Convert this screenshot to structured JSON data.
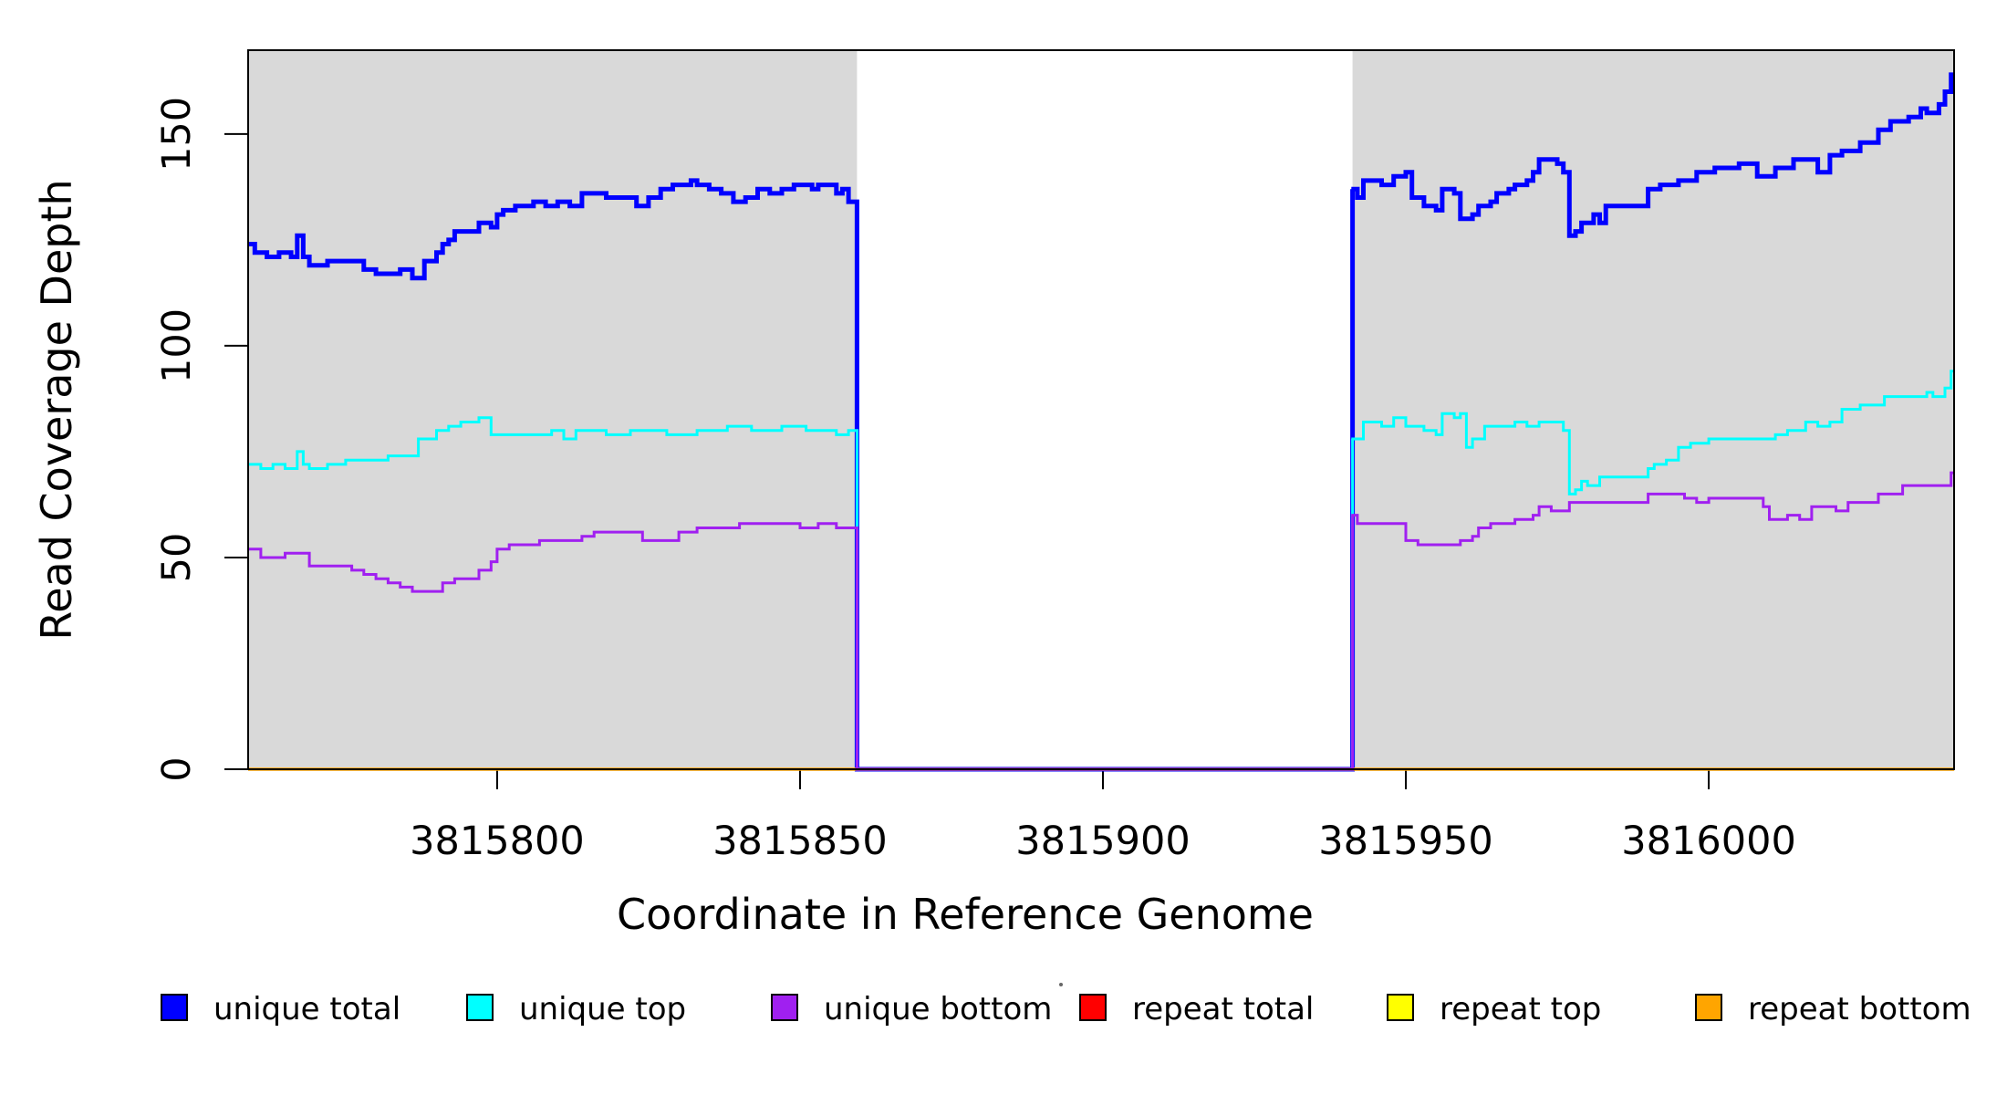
{
  "chart_data": {
    "type": "line",
    "subtype": "step-after-coverage-plot",
    "title": "",
    "xlabel": "Coordinate in Reference Genome",
    "ylabel": "Read Coverage Depth",
    "x_ticks": [
      3815800,
      3815850,
      3815900,
      3815950,
      3816000
    ],
    "y_ticks": [
      0,
      50,
      100,
      150
    ],
    "xlim": [
      3815758.9,
      3816040.5
    ],
    "ylim": [
      0,
      169.8
    ],
    "grid": false,
    "background_shading": {
      "color": "#D9D9D9",
      "regions": [
        {
          "from": 3815758.9,
          "to": 3815859.4,
          "meaning": "unique region (shaded)"
        },
        {
          "from": 3815941.2,
          "to": 3816040.5,
          "meaning": "unique region (shaded)"
        }
      ]
    },
    "zero_coverage_gap": {
      "from": 3815859.4,
      "to": 3815941.2
    },
    "series": [
      {
        "name": "unique total",
        "color": "#0000FF",
        "width": 5,
        "left_segment": [
          [
            3815759,
            124
          ],
          [
            3815760,
            122
          ],
          [
            3815762,
            121
          ],
          [
            3815764,
            122
          ],
          [
            3815766,
            121
          ],
          [
            3815767,
            126
          ],
          [
            3815768,
            121
          ],
          [
            3815769,
            119
          ],
          [
            3815772,
            120
          ],
          [
            3815778,
            118
          ],
          [
            3815780,
            117
          ],
          [
            3815784,
            118
          ],
          [
            3815786,
            116
          ],
          [
            3815788,
            120
          ],
          [
            3815790,
            122
          ],
          [
            3815791,
            124
          ],
          [
            3815792,
            125
          ],
          [
            3815793,
            127
          ],
          [
            3815797,
            129
          ],
          [
            3815799,
            128
          ],
          [
            3815800,
            131
          ],
          [
            3815801,
            132
          ],
          [
            3815803,
            133
          ],
          [
            3815806,
            134
          ],
          [
            3815808,
            133
          ],
          [
            3815810,
            134
          ],
          [
            3815812,
            133
          ],
          [
            3815814,
            136
          ],
          [
            3815818,
            135
          ],
          [
            3815821,
            135
          ],
          [
            3815823,
            133
          ],
          [
            3815825,
            135
          ],
          [
            3815827,
            137
          ],
          [
            3815829,
            138
          ],
          [
            3815832,
            139
          ],
          [
            3815833,
            138
          ],
          [
            3815835,
            137
          ],
          [
            3815837,
            136
          ],
          [
            3815839,
            134
          ],
          [
            3815841,
            135
          ],
          [
            3815843,
            137
          ],
          [
            3815845,
            136
          ],
          [
            3815847,
            137
          ],
          [
            3815849,
            138
          ],
          [
            3815852,
            137
          ],
          [
            3815853,
            138
          ],
          [
            3815856,
            136
          ],
          [
            3815857,
            137
          ],
          [
            3815858,
            134
          ]
        ],
        "right_segment": [
          [
            3815941,
            137
          ],
          [
            3815942,
            135
          ],
          [
            3815943,
            139
          ],
          [
            3815946,
            138
          ],
          [
            3815948,
            140
          ],
          [
            3815950,
            141
          ],
          [
            3815951,
            135
          ],
          [
            3815953,
            133
          ],
          [
            3815955,
            132
          ],
          [
            3815956,
            137
          ],
          [
            3815958,
            136
          ],
          [
            3815959,
            130
          ],
          [
            3815961,
            131
          ],
          [
            3815962,
            133
          ],
          [
            3815964,
            134
          ],
          [
            3815965,
            136
          ],
          [
            3815967,
            137
          ],
          [
            3815968,
            138
          ],
          [
            3815970,
            139
          ],
          [
            3815971,
            141
          ],
          [
            3815972,
            144
          ],
          [
            3815975,
            143
          ],
          [
            3815976,
            141
          ],
          [
            3815977,
            126
          ],
          [
            3815978,
            127
          ],
          [
            3815979,
            129
          ],
          [
            3815981,
            131
          ],
          [
            3815982,
            129
          ],
          [
            3815983,
            133
          ],
          [
            3815990,
            137
          ],
          [
            3815992,
            138
          ],
          [
            3815995,
            139
          ],
          [
            3815998,
            141
          ],
          [
            3816001,
            142
          ],
          [
            3816005,
            143
          ],
          [
            3816008,
            140
          ],
          [
            3816011,
            142
          ],
          [
            3816014,
            144
          ],
          [
            3816018,
            141
          ],
          [
            3816020,
            145
          ],
          [
            3816022,
            146
          ],
          [
            3816025,
            148
          ],
          [
            3816028,
            151
          ],
          [
            3816030,
            153
          ],
          [
            3816033,
            154
          ],
          [
            3816035,
            156
          ],
          [
            3816036,
            155
          ],
          [
            3816038,
            157
          ],
          [
            3816039,
            160
          ],
          [
            3816040,
            164
          ]
        ]
      },
      {
        "name": "unique top",
        "color": "#00FFFF",
        "width": 3,
        "left_segment": [
          [
            3815759,
            72
          ],
          [
            3815761,
            71
          ],
          [
            3815763,
            72
          ],
          [
            3815765,
            71
          ],
          [
            3815767,
            75
          ],
          [
            3815768,
            72
          ],
          [
            3815769,
            71
          ],
          [
            3815772,
            72
          ],
          [
            3815775,
            73
          ],
          [
            3815782,
            74
          ],
          [
            3815787,
            78
          ],
          [
            3815790,
            80
          ],
          [
            3815792,
            81
          ],
          [
            3815794,
            82
          ],
          [
            3815797,
            83
          ],
          [
            3815799,
            79
          ],
          [
            3815807,
            79
          ],
          [
            3815809,
            80
          ],
          [
            3815811,
            78
          ],
          [
            3815813,
            80
          ],
          [
            3815818,
            79
          ],
          [
            3815822,
            80
          ],
          [
            3815828,
            79
          ],
          [
            3815833,
            80
          ],
          [
            3815838,
            81
          ],
          [
            3815842,
            80
          ],
          [
            3815847,
            81
          ],
          [
            3815851,
            80
          ],
          [
            3815856,
            79
          ],
          [
            3815858,
            80
          ]
        ],
        "right_segment": [
          [
            3815941,
            78
          ],
          [
            3815943,
            82
          ],
          [
            3815946,
            81
          ],
          [
            3815948,
            83
          ],
          [
            3815950,
            81
          ],
          [
            3815953,
            80
          ],
          [
            3815955,
            79
          ],
          [
            3815956,
            84
          ],
          [
            3815958,
            83
          ],
          [
            3815959,
            84
          ],
          [
            3815960,
            76
          ],
          [
            3815961,
            78
          ],
          [
            3815963,
            81
          ],
          [
            3815968,
            82
          ],
          [
            3815970,
            81
          ],
          [
            3815972,
            82
          ],
          [
            3815975,
            82
          ],
          [
            3815976,
            80
          ],
          [
            3815977,
            65
          ],
          [
            3815978,
            66
          ],
          [
            3815979,
            68
          ],
          [
            3815980,
            67
          ],
          [
            3815982,
            69
          ],
          [
            3815990,
            71
          ],
          [
            3815991,
            72
          ],
          [
            3815993,
            73
          ],
          [
            3815995,
            76
          ],
          [
            3815997,
            77
          ],
          [
            3816000,
            78
          ],
          [
            3816011,
            79
          ],
          [
            3816013,
            80
          ],
          [
            3816016,
            82
          ],
          [
            3816018,
            81
          ],
          [
            3816020,
            82
          ],
          [
            3816022,
            85
          ],
          [
            3816025,
            86
          ],
          [
            3816029,
            88
          ],
          [
            3816036,
            89
          ],
          [
            3816037,
            88
          ],
          [
            3816039,
            90
          ],
          [
            3816040,
            94
          ]
        ]
      },
      {
        "name": "unique bottom",
        "color": "#A020F0",
        "width": 3,
        "left_segment": [
          [
            3815759,
            52
          ],
          [
            3815761,
            50
          ],
          [
            3815765,
            51
          ],
          [
            3815767,
            51
          ],
          [
            3815769,
            48
          ],
          [
            3815772,
            48
          ],
          [
            3815776,
            47
          ],
          [
            3815778,
            46
          ],
          [
            3815780,
            45
          ],
          [
            3815782,
            44
          ],
          [
            3815784,
            43
          ],
          [
            3815786,
            42
          ],
          [
            3815791,
            44
          ],
          [
            3815793,
            45
          ],
          [
            3815797,
            47
          ],
          [
            3815799,
            49
          ],
          [
            3815800,
            52
          ],
          [
            3815802,
            53
          ],
          [
            3815807,
            54
          ],
          [
            3815814,
            55
          ],
          [
            3815816,
            56
          ],
          [
            3815821,
            56
          ],
          [
            3815824,
            54
          ],
          [
            3815828,
            54
          ],
          [
            3815830,
            56
          ],
          [
            3815833,
            57
          ],
          [
            3815837,
            57
          ],
          [
            3815840,
            58
          ],
          [
            3815845,
            58
          ],
          [
            3815850,
            57
          ],
          [
            3815853,
            58
          ],
          [
            3815856,
            57
          ]
        ],
        "right_segment": [
          [
            3815941,
            60
          ],
          [
            3815942,
            58
          ],
          [
            3815950,
            54
          ],
          [
            3815952,
            53
          ],
          [
            3815959,
            54
          ],
          [
            3815961,
            55
          ],
          [
            3815962,
            57
          ],
          [
            3815964,
            58
          ],
          [
            3815968,
            59
          ],
          [
            3815971,
            60
          ],
          [
            3815972,
            62
          ],
          [
            3815974,
            61
          ],
          [
            3815977,
            63
          ],
          [
            3815990,
            65
          ],
          [
            3815993,
            65
          ],
          [
            3815996,
            64
          ],
          [
            3815998,
            63
          ],
          [
            3816000,
            64
          ],
          [
            3816007,
            64
          ],
          [
            3816009,
            62
          ],
          [
            3816010,
            59
          ],
          [
            3816013,
            60
          ],
          [
            3816015,
            59
          ],
          [
            3816017,
            62
          ],
          [
            3816021,
            61
          ],
          [
            3816023,
            63
          ],
          [
            3816028,
            65
          ],
          [
            3816032,
            67
          ],
          [
            3816039,
            67
          ],
          [
            3816040,
            70
          ]
        ]
      },
      {
        "name": "repeat total",
        "color": "#FF0000",
        "width": 3,
        "constant_value": 0
      },
      {
        "name": "repeat top",
        "color": "#FFFF00",
        "width": 3,
        "constant_value": 0
      },
      {
        "name": "repeat bottom",
        "color": "#FFA500",
        "width": 3.5,
        "constant_value": 0
      }
    ],
    "legend": {
      "position": "bottom",
      "entries": [
        {
          "label": "unique total",
          "color": "#0000FF"
        },
        {
          "label": "unique top",
          "color": "#00FFFF"
        },
        {
          "label": "unique bottom",
          "color": "#A020F0"
        },
        {
          "label": "repeat total",
          "color": "#FF0000"
        },
        {
          "label": "repeat top",
          "color": "#FFFF00"
        },
        {
          "label": "repeat bottom",
          "color": "#FFA500"
        }
      ]
    }
  },
  "layout_text": {
    "x_axis_title": "Coordinate in Reference Genome",
    "y_axis_title": "Read Coverage Depth",
    "x_tick_labels": [
      "3815800",
      "3815850",
      "3815900",
      "3815950",
      "3816000"
    ],
    "y_tick_labels": [
      "0",
      "50",
      "100",
      "150"
    ]
  }
}
